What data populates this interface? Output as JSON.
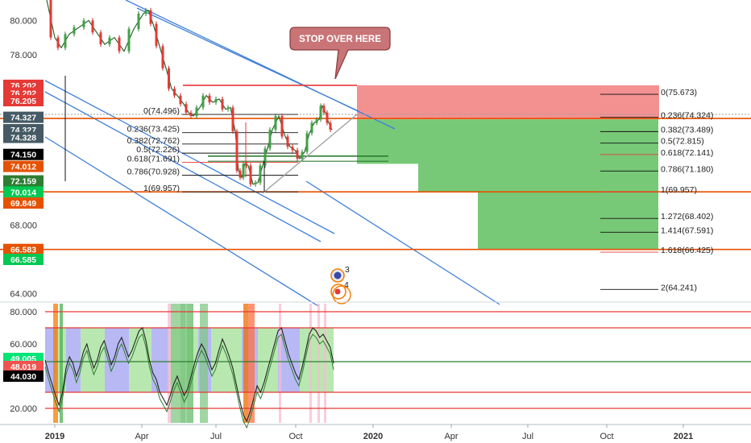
{
  "chart_data": [
    {
      "type": "line",
      "panel": "price",
      "ylim": [
        63.5,
        81.2
      ],
      "y_ticks": [
        {
          "v": 80,
          "label": "80.000"
        },
        {
          "v": 78,
          "label": "78.000"
        },
        {
          "v": 68,
          "label": "68.000"
        },
        {
          "v": 64,
          "label": "64.000"
        }
      ],
      "x_ticks": [
        "2019",
        "Apr",
        "Jul",
        "Oct",
        "2020",
        "Apr",
        "Jul",
        "Oct",
        "2021"
      ],
      "x_tick_bold": [
        0,
        4,
        8
      ],
      "price_path": [
        [
          0,
          81.2
        ],
        [
          10,
          79.0
        ],
        [
          18,
          78.4
        ],
        [
          28,
          79.2
        ],
        [
          40,
          79.6
        ],
        [
          52,
          80.0
        ],
        [
          62,
          79.3
        ],
        [
          72,
          78.6
        ],
        [
          84,
          79.0
        ],
        [
          96,
          78.2
        ],
        [
          108,
          79.5
        ],
        [
          120,
          80.4
        ],
        [
          126,
          80.6
        ],
        [
          132,
          79.8
        ],
        [
          140,
          78.5
        ],
        [
          148,
          77.2
        ],
        [
          155,
          76.0
        ],
        [
          162,
          75.6
        ],
        [
          170,
          75.1
        ],
        [
          176,
          74.6
        ],
        [
          182,
          74.4
        ],
        [
          190,
          74.9
        ],
        [
          198,
          75.6
        ],
        [
          206,
          75.2
        ],
        [
          214,
          75.4
        ],
        [
          222,
          74.8
        ],
        [
          228,
          74.9
        ],
        [
          234,
          73.5
        ],
        [
          238,
          71.2
        ],
        [
          242,
          70.8
        ],
        [
          246,
          71.6
        ],
        [
          250,
          71.5
        ],
        [
          256,
          70.4
        ],
        [
          262,
          70.5
        ],
        [
          268,
          71.5
        ],
        [
          274,
          72.5
        ],
        [
          280,
          73.6
        ],
        [
          288,
          74.4
        ],
        [
          296,
          73.2
        ],
        [
          302,
          72.6
        ],
        [
          308,
          72.4
        ],
        [
          314,
          71.9
        ],
        [
          320,
          72.3
        ],
        [
          326,
          73.4
        ],
        [
          332,
          74.0
        ],
        [
          338,
          74.2
        ],
        [
          342,
          75.0
        ],
        [
          346,
          74.6
        ],
        [
          350,
          74.0
        ],
        [
          354,
          73.6
        ]
      ],
      "ribbon_lines": [
        {
          "name": "price-h-line-1",
          "y": 74.5,
          "color": "#9e9e9e",
          "dash": "2,2"
        },
        {
          "name": "price-h-line-2",
          "y": 74.26,
          "color": "#e65100",
          "dash": ""
        },
        {
          "name": "price-h-line-3",
          "y": 69.957,
          "color": "#e65100",
          "dash": ""
        },
        {
          "name": "price-h-line-4",
          "y": 66.583,
          "color": "#e65100",
          "dash": ""
        }
      ],
      "red_zone": {
        "from": 76.202,
        "to": 74.2
      },
      "green_zones": [
        {
          "top": 74.2,
          "bottom": 71.6,
          "x_end": 60
        },
        {
          "top": 74.2,
          "bottom": 69.957,
          "x_end": 120
        },
        {
          "top": 74.2,
          "bottom": 66.583,
          "x_end": 332
        }
      ],
      "left_fib": [
        {
          "label": "0(74.496)",
          "v": 74.496,
          "red": false
        },
        {
          "label": "0.236(73.425)",
          "v": 73.425,
          "red": false
        },
        {
          "label": "0.382(72.762)",
          "v": 72.762,
          "red": false
        },
        {
          "label": "0.5(72.226)",
          "v": 72.226,
          "red": false
        },
        {
          "label": "0.618(71.691)",
          "v": 71.691,
          "red": true
        },
        {
          "label": "0.786(70.928)",
          "v": 70.928,
          "red": false
        },
        {
          "label": "1(69.957)",
          "v": 69.957,
          "red": false
        }
      ],
      "right_fib": [
        {
          "label": "0(75.673)",
          "v": 75.673,
          "red": false
        },
        {
          "label": "0.236(74.324)",
          "v": 74.324,
          "red": false
        },
        {
          "label": "0.382(73.489)",
          "v": 73.489,
          "red": false
        },
        {
          "label": "0.5(72.815)",
          "v": 72.815,
          "red": false
        },
        {
          "label": "0.618(72.141)",
          "v": 72.141,
          "red": true
        },
        {
          "label": "0.786(71.180)",
          "v": 71.18,
          "red": false
        },
        {
          "label": "1(69.957)",
          "v": 69.957,
          "red": true
        },
        {
          "label": "1.272(68.402)",
          "v": 68.402,
          "red": false
        },
        {
          "label": "1.414(67.591)",
          "v": 67.591,
          "red": false
        },
        {
          "label": "1.618(66.425)",
          "v": 66.425,
          "red": true
        },
        {
          "label": "2(64.241)",
          "v": 64.241,
          "red": false
        }
      ],
      "price_badges": [
        {
          "label": "76.202",
          "v": 76.202,
          "color": "#e53935"
        },
        {
          "label": "76.202",
          "v": 75.75,
          "color": "#e53935"
        },
        {
          "label": "76.205",
          "v": 75.3,
          "color": "#e53935"
        },
        {
          "label": "74.327",
          "v": 74.327,
          "color": "#455a64"
        },
        {
          "label": "74.327",
          "v": 73.6,
          "color": "#455a64"
        },
        {
          "label": "74.328",
          "v": 73.15,
          "color": "#455a64"
        },
        {
          "label": "74.150",
          "v": 72.15,
          "color": "#000000"
        },
        {
          "label": "74.012",
          "v": 71.45,
          "color": "#e65100"
        },
        {
          "label": "72.159",
          "v": 70.6,
          "color": "#2e7d32"
        },
        {
          "label": "70.014",
          "v": 69.95,
          "color": "#00c853"
        },
        {
          "label": "69.849",
          "v": 69.3,
          "color": "#e65100"
        },
        {
          "label": "66.583",
          "v": 66.583,
          "color": "#e65100"
        },
        {
          "label": "66.585",
          "v": 66.0,
          "color": "#00c853"
        }
      ],
      "callout": {
        "text": "STOP OVER HERE"
      },
      "event_badges": [
        {
          "label": "3"
        },
        {
          "label": "4"
        }
      ]
    },
    {
      "type": "line",
      "panel": "oscillator",
      "ylim": [
        10,
        86
      ],
      "y_ticks": [
        {
          "v": 80,
          "label": "80.000"
        },
        {
          "v": 60,
          "label": "60.000"
        },
        {
          "v": 20,
          "label": "20.000"
        }
      ],
      "levels": [
        {
          "v": 80,
          "color": "#e53935"
        },
        {
          "v": 70,
          "color": "#e53935"
        },
        {
          "v": 49,
          "color": "#2e7d32"
        },
        {
          "v": 30,
          "color": "#e53935"
        },
        {
          "v": 20,
          "color": "#e53935"
        }
      ],
      "osc_values": [
        50,
        42,
        35,
        28,
        22,
        30,
        45,
        52,
        48,
        40,
        46,
        55,
        60,
        52,
        45,
        50,
        58,
        62,
        55,
        47,
        52,
        60,
        64,
        58,
        52,
        56,
        62,
        68,
        70,
        62,
        50,
        42,
        38,
        30,
        26,
        22,
        28,
        35,
        40,
        34,
        28,
        32,
        40,
        48,
        55,
        60,
        56,
        50,
        44,
        48,
        56,
        63,
        58,
        52,
        45,
        35,
        25,
        16,
        12,
        18,
        26,
        34,
        30,
        36,
        44,
        52,
        60,
        68,
        70,
        62,
        54,
        48,
        42,
        38,
        46,
        56,
        66,
        70,
        68,
        64,
        66,
        62,
        58,
        48
      ],
      "osc_badges": [
        {
          "label": "49.005",
          "v": 51,
          "color": "#00e676",
          "text_color": "#000000"
        },
        {
          "label": "48.019",
          "v": 46,
          "color": "#ef5350",
          "text_color": "#ffffff"
        },
        {
          "label": "44.030",
          "v": 40,
          "color": "#000000",
          "text_color": "#ffffff"
        }
      ]
    }
  ]
}
